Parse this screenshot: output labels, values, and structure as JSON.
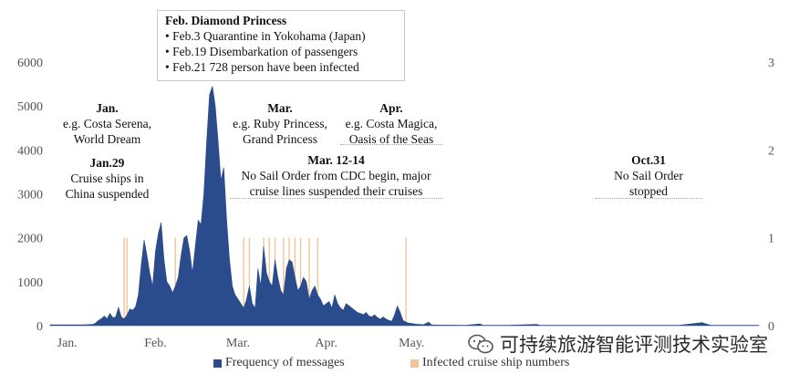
{
  "chart_data": {
    "type": "area",
    "series": [
      {
        "name": "Frequency of messages",
        "axis": "left",
        "color": "#2b4c8c"
      },
      {
        "name": "Infected cruise ship numbers",
        "axis": "right",
        "color": "#f2c49b"
      }
    ],
    "left_axis": {
      "ticks": [
        "0",
        "1000",
        "2000",
        "3000",
        "4000",
        "5000",
        "6000"
      ],
      "range": [
        0,
        6000
      ]
    },
    "right_axis": {
      "ticks": [
        "0",
        "1",
        "2",
        "3"
      ],
      "range": [
        0,
        3
      ]
    },
    "x_axis": {
      "labels": [
        "Jan.",
        "Feb.",
        "Mar.",
        "Apr.",
        "May."
      ],
      "label_days": [
        0,
        31,
        60,
        91,
        121
      ],
      "range_days": [
        -6,
        243
      ]
    },
    "frequency": [
      [
        -6,
        20
      ],
      [
        0,
        20
      ],
      [
        6,
        20
      ],
      [
        9,
        30
      ],
      [
        10,
        60
      ],
      [
        11,
        120
      ],
      [
        12,
        160
      ],
      [
        13,
        220
      ],
      [
        14,
        160
      ],
      [
        15,
        280
      ],
      [
        16,
        180
      ],
      [
        17,
        200
      ],
      [
        18,
        420
      ],
      [
        19,
        200
      ],
      [
        20,
        150
      ],
      [
        21,
        250
      ],
      [
        22,
        380
      ],
      [
        23,
        350
      ],
      [
        24,
        430
      ],
      [
        25,
        700
      ],
      [
        26,
        1400
      ],
      [
        27,
        1950
      ],
      [
        28,
        1600
      ],
      [
        29,
        1200
      ],
      [
        30,
        900
      ],
      [
        31,
        1700
      ],
      [
        32,
        2100
      ],
      [
        33,
        2350
      ],
      [
        34,
        1500
      ],
      [
        35,
        1000
      ],
      [
        36,
        900
      ],
      [
        37,
        750
      ],
      [
        38,
        900
      ],
      [
        39,
        1100
      ],
      [
        40,
        1600
      ],
      [
        41,
        2000
      ],
      [
        42,
        2050
      ],
      [
        43,
        1700
      ],
      [
        44,
        1200
      ],
      [
        45,
        1800
      ],
      [
        46,
        2400
      ],
      [
        47,
        2300
      ],
      [
        48,
        3000
      ],
      [
        49,
        4200
      ],
      [
        50,
        5250
      ],
      [
        51,
        5450
      ],
      [
        52,
        5000
      ],
      [
        53,
        4200
      ],
      [
        54,
        3300
      ],
      [
        55,
        3600
      ],
      [
        56,
        2400
      ],
      [
        57,
        1500
      ],
      [
        58,
        900
      ],
      [
        59,
        700
      ],
      [
        60,
        600
      ],
      [
        61,
        500
      ],
      [
        62,
        400
      ],
      [
        63,
        600
      ],
      [
        64,
        900
      ],
      [
        65,
        500
      ],
      [
        66,
        400
      ],
      [
        67,
        1300
      ],
      [
        68,
        900
      ],
      [
        69,
        1800
      ],
      [
        70,
        1200
      ],
      [
        71,
        1000
      ],
      [
        72,
        900
      ],
      [
        73,
        1500
      ],
      [
        74,
        1100
      ],
      [
        75,
        800
      ],
      [
        76,
        700
      ],
      [
        77,
        1300
      ],
      [
        78,
        1500
      ],
      [
        79,
        1450
      ],
      [
        80,
        1100
      ],
      [
        81,
        800
      ],
      [
        82,
        900
      ],
      [
        83,
        1100
      ],
      [
        84,
        1000
      ],
      [
        85,
        600
      ],
      [
        86,
        800
      ],
      [
        87,
        900
      ],
      [
        88,
        700
      ],
      [
        89,
        600
      ],
      [
        90,
        450
      ],
      [
        91,
        500
      ],
      [
        92,
        550
      ],
      [
        93,
        400
      ],
      [
        94,
        700
      ],
      [
        95,
        500
      ],
      [
        96,
        400
      ],
      [
        97,
        350
      ],
      [
        98,
        500
      ],
      [
        99,
        450
      ],
      [
        100,
        400
      ],
      [
        101,
        350
      ],
      [
        102,
        300
      ],
      [
        103,
        280
      ],
      [
        104,
        250
      ],
      [
        105,
        300
      ],
      [
        106,
        220
      ],
      [
        107,
        200
      ],
      [
        108,
        250
      ],
      [
        109,
        180
      ],
      [
        110,
        150
      ],
      [
        111,
        200
      ],
      [
        112,
        150
      ],
      [
        113,
        120
      ],
      [
        114,
        100
      ],
      [
        115,
        250
      ],
      [
        116,
        450
      ],
      [
        117,
        300
      ],
      [
        118,
        120
      ],
      [
        119,
        80
      ],
      [
        120,
        60
      ],
      [
        121,
        50
      ],
      [
        122,
        40
      ],
      [
        123,
        30
      ],
      [
        124,
        30
      ],
      [
        125,
        20
      ],
      [
        127,
        80
      ],
      [
        128,
        20
      ],
      [
        130,
        15
      ],
      [
        140,
        10
      ],
      [
        145,
        40
      ],
      [
        146,
        10
      ],
      [
        155,
        10
      ],
      [
        165,
        30
      ],
      [
        166,
        10
      ],
      [
        180,
        10
      ],
      [
        200,
        10
      ],
      [
        215,
        10
      ],
      [
        222,
        60
      ],
      [
        223,
        70
      ],
      [
        224,
        50
      ],
      [
        226,
        10
      ],
      [
        243,
        10
      ]
    ],
    "infected_days": [
      20,
      21,
      38,
      53,
      62,
      64,
      69,
      71,
      73,
      76,
      78,
      80,
      82,
      85,
      88,
      119
    ]
  },
  "annotations": {
    "diamond": {
      "title": "Feb. Diamond Princess",
      "lines": [
        "• Feb.3 Quarantine in Yokohama (Japan)",
        "• Feb.19 Disembarkation of passengers",
        "• Feb.21 728 person have been infected"
      ]
    },
    "jan": {
      "title": "Jan.",
      "lines": [
        "e.g. Costa Serena,",
        "World Dream"
      ]
    },
    "jan29": {
      "title": "Jan.29",
      "lines": [
        "Cruise ships in",
        "China suspended"
      ]
    },
    "mar": {
      "title": "Mar.",
      "lines": [
        "e.g. Ruby Princess,",
        "Grand Princess"
      ]
    },
    "apr": {
      "title": "Apr.",
      "lines": [
        "e.g. Costa Magica,",
        "Oasis of the Seas"
      ]
    },
    "mar1214": {
      "title": "Mar. 12-14",
      "lines": [
        "No Sail Order from CDC begin,  major",
        "cruise lines suspended their cruises"
      ]
    },
    "oct31": {
      "title": "Oct.31",
      "lines": [
        "No Sail Order",
        "stopped"
      ]
    }
  },
  "legend": {
    "frequency": "Frequency of messages",
    "infected": "Infected cruise ship numbers"
  },
  "watermark": {
    "text": "可持续旅游智能评测技术实验室",
    "icon": "wechat-icon"
  }
}
